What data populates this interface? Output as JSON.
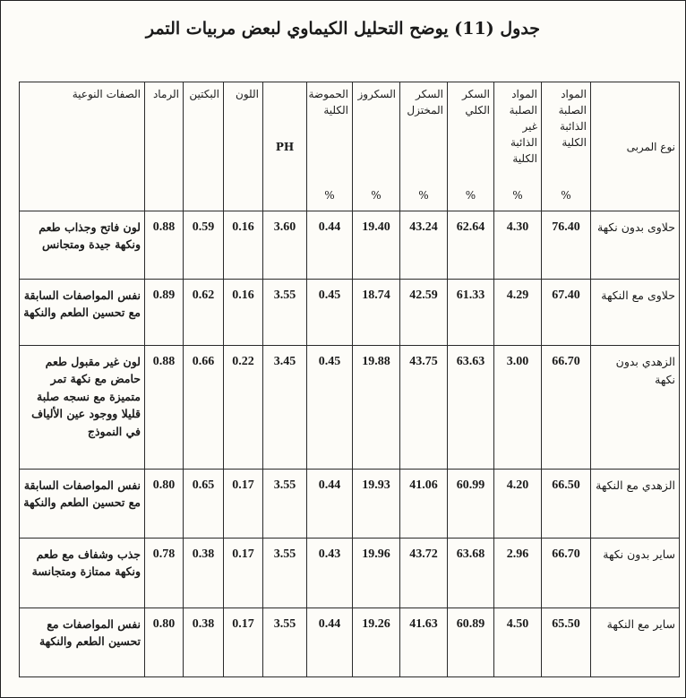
{
  "title": "جدول (11) يوضح التحليل الكيماوي لبعض مربيات التمر",
  "headers": {
    "traits": "الصفات النوعية",
    "ash": "الرماد",
    "pectin": "البكتين",
    "color": "اللون",
    "ph": "PH",
    "acidity": "الحموضة الكلية",
    "sucrose": "السكروز",
    "reducing_sugar": "السكر المختزل",
    "total_sugar": "السكر الكلي",
    "insoluble_solids": "المواد الصلبة غير الذائبة الكلية",
    "soluble_solids": "المواد الصلبة الذائبة الكلية",
    "type": "نوع المربى",
    "percent": "%"
  },
  "rows": [
    {
      "type": "حلاوى بدون نكهة",
      "soluble": "76.40",
      "insoluble": "4.30",
      "total_sugar": "62.64",
      "reducing": "43.24",
      "sucrose": "19.40",
      "acidity": "0.44",
      "ph": "3.60",
      "color": "0.16",
      "pectin": "0.59",
      "ash": "0.88",
      "traits": "لون فاتح وجذاب طعم ونكهة جيدة ومتجانس"
    },
    {
      "type": "حلاوى مع النكهة",
      "soluble": "67.40",
      "insoluble": "4.29",
      "total_sugar": "61.33",
      "reducing": "42.59",
      "sucrose": "18.74",
      "acidity": "0.45",
      "ph": "3.55",
      "color": "0.16",
      "pectin": "0.62",
      "ash": "0.89",
      "traits": "نفس المواصفات السابقة مع تحسين الطعم والنكهة"
    },
    {
      "type": "الزهدي بدون نكهة",
      "soluble": "66.70",
      "insoluble": "3.00",
      "total_sugar": "63.63",
      "reducing": "43.75",
      "sucrose": "19.88",
      "acidity": "0.45",
      "ph": "3.45",
      "color": "0.22",
      "pectin": "0.66",
      "ash": "0.88",
      "traits": "لون غير مقبول طعم حامض مع نكهة تمر متميزة مع نسجه صلبة قليلا ووجود عين الألياف في النموذج"
    },
    {
      "type": "الزهدي مع النكهة",
      "soluble": "66.50",
      "insoluble": "4.20",
      "total_sugar": "60.99",
      "reducing": "41.06",
      "sucrose": "19.93",
      "acidity": "0.44",
      "ph": "3.55",
      "color": "0.17",
      "pectin": "0.65",
      "ash": "0.80",
      "traits": "نفس المواصفات السابقة مع تحسين الطعم والنكهة"
    },
    {
      "type": "ساير بدون نكهة",
      "soluble": "66.70",
      "insoluble": "2.96",
      "total_sugar": "63.68",
      "reducing": "43.72",
      "sucrose": "19.96",
      "acidity": "0.43",
      "ph": "3.55",
      "color": "0.17",
      "pectin": "0.38",
      "ash": "0.78",
      "traits": "جذب وشفاف مع طعم ونكهة ممتازة ومتجانسة"
    },
    {
      "type": "ساير مع النكهة",
      "soluble": "65.50",
      "insoluble": "4.50",
      "total_sugar": "60.89",
      "reducing": "41.63",
      "sucrose": "19.26",
      "acidity": "0.44",
      "ph": "3.55",
      "color": "0.17",
      "pectin": "0.38",
      "ash": "0.80",
      "traits": "نفس المواصفات مع تحسين الطعم والنكهة"
    }
  ]
}
